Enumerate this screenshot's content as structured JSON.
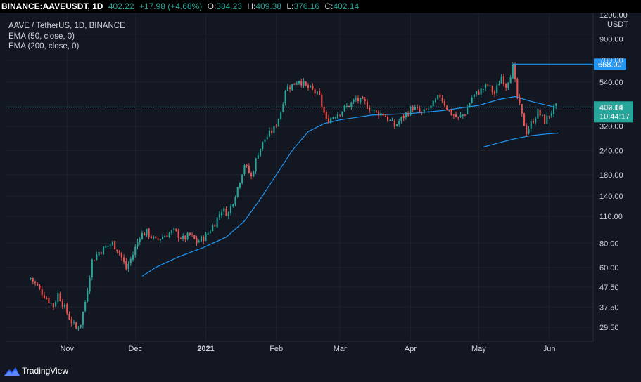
{
  "header": {
    "symbol": "BINANCE:AAVEUSDT, 1D",
    "price": "402.22",
    "change": "+17.98 (+4.68%)",
    "open_label": "O:",
    "open": "384.23",
    "high_label": "H:",
    "high": "409.38",
    "low_label": "L:",
    "low": "376.16",
    "close_label": "C:",
    "close": "402.14"
  },
  "legend": {
    "title": "AAVE / TetherUS, 1D, BINANCE",
    "ema50": "EMA (50, close, 0)",
    "ema200": "EMA (200, close, 0)"
  },
  "brand": {
    "name": "TradingView"
  },
  "colors": {
    "background": "#131722",
    "up": "#26a69a",
    "down": "#ef5350",
    "ema": "#2196f3",
    "grid": "#1e222d"
  },
  "chart_data": {
    "type": "candlestick",
    "y_scale": "log",
    "ylim": [
      25,
      1230
    ],
    "y_unit": "USDT",
    "y_ticks": [
      "1200.00",
      "900.00",
      "700.00",
      "540.00",
      "400.00",
      "320.00",
      "240.00",
      "180.00",
      "140.00",
      "110.00",
      "80.00",
      "60.00",
      "47.50",
      "37.50",
      "29.50"
    ],
    "x_ticks": [
      "Nov",
      "Dec",
      "2021",
      "Feb",
      "Mar",
      "Apr",
      "May",
      "Jun"
    ],
    "x_tick_dates": [
      "2020-11-01",
      "2020-12-01",
      "2021-01-01",
      "2021-02-01",
      "2021-03-01",
      "2021-04-01",
      "2021-05-01",
      "2021-06-01"
    ],
    "last_price": "402.14",
    "countdown": "10:44:17",
    "horizontal_line": {
      "value": 668.0,
      "label": "668.00"
    },
    "candle_keypoints": [
      [
        "2020-10-16",
        53
      ],
      [
        "2020-10-22",
        43
      ],
      [
        "2020-10-26",
        38
      ],
      [
        "2020-10-28",
        44
      ],
      [
        "2020-11-02",
        33
      ],
      [
        "2020-11-05",
        29
      ],
      [
        "2020-11-07",
        31
      ],
      [
        "2020-11-09",
        40
      ],
      [
        "2020-11-12",
        65
      ],
      [
        "2020-11-15",
        72
      ],
      [
        "2020-11-18",
        76
      ],
      [
        "2020-11-21",
        80
      ],
      [
        "2020-11-24",
        72
      ],
      [
        "2020-11-27",
        59
      ],
      [
        "2020-11-30",
        70
      ],
      [
        "2020-12-03",
        88
      ],
      [
        "2020-12-06",
        91
      ],
      [
        "2020-12-10",
        82
      ],
      [
        "2020-12-14",
        88
      ],
      [
        "2020-12-18",
        92
      ],
      [
        "2020-12-22",
        84
      ],
      [
        "2020-12-25",
        88
      ],
      [
        "2020-12-28",
        81
      ],
      [
        "2021-01-01",
        87
      ],
      [
        "2021-01-05",
        102
      ],
      [
        "2021-01-08",
        119
      ],
      [
        "2021-01-11",
        114
      ],
      [
        "2021-01-15",
        155
      ],
      [
        "2021-01-18",
        205
      ],
      [
        "2021-01-21",
        175
      ],
      [
        "2021-01-24",
        235
      ],
      [
        "2021-01-27",
        275
      ],
      [
        "2021-01-31",
        310
      ],
      [
        "2021-02-03",
        380
      ],
      [
        "2021-02-05",
        500
      ],
      [
        "2021-02-08",
        520
      ],
      [
        "2021-02-11",
        560
      ],
      [
        "2021-02-14",
        510
      ],
      [
        "2021-02-17",
        490
      ],
      [
        "2021-02-20",
        450
      ],
      [
        "2021-02-23",
        340
      ],
      [
        "2021-02-26",
        360
      ],
      [
        "2021-03-01",
        380
      ],
      [
        "2021-03-05",
        410
      ],
      [
        "2021-03-08",
        440
      ],
      [
        "2021-03-12",
        420
      ],
      [
        "2021-03-16",
        380
      ],
      [
        "2021-03-20",
        370
      ],
      [
        "2021-03-25",
        320
      ],
      [
        "2021-03-29",
        360
      ],
      [
        "2021-04-02",
        400
      ],
      [
        "2021-04-06",
        370
      ],
      [
        "2021-04-10",
        400
      ],
      [
        "2021-04-14",
        460
      ],
      [
        "2021-04-18",
        380
      ],
      [
        "2021-04-22",
        350
      ],
      [
        "2021-04-25",
        375
      ],
      [
        "2021-04-28",
        450
      ],
      [
        "2021-05-01",
        480
      ],
      [
        "2021-05-05",
        520
      ],
      [
        "2021-05-08",
        470
      ],
      [
        "2021-05-11",
        580
      ],
      [
        "2021-05-13",
        520
      ],
      [
        "2021-05-16",
        640
      ],
      [
        "2021-05-18",
        450
      ],
      [
        "2021-05-20",
        360
      ],
      [
        "2021-05-22",
        300
      ],
      [
        "2021-05-24",
        330
      ],
      [
        "2021-05-27",
        380
      ],
      [
        "2021-05-30",
        340
      ],
      [
        "2021-06-02",
        380
      ],
      [
        "2021-06-04",
        402
      ]
    ],
    "ema50_keypoints": [
      [
        "2020-12-04",
        54
      ],
      [
        "2020-12-10",
        60
      ],
      [
        "2020-12-20",
        68
      ],
      [
        "2020-12-31",
        76
      ],
      [
        "2021-01-10",
        86
      ],
      [
        "2021-01-18",
        104
      ],
      [
        "2021-01-25",
        135
      ],
      [
        "2021-02-01",
        180
      ],
      [
        "2021-02-08",
        240
      ],
      [
        "2021-02-15",
        300
      ],
      [
        "2021-02-22",
        330
      ],
      [
        "2021-03-01",
        345
      ],
      [
        "2021-03-15",
        365
      ],
      [
        "2021-04-01",
        372
      ],
      [
        "2021-04-15",
        385
      ],
      [
        "2021-05-01",
        410
      ],
      [
        "2021-05-10",
        440
      ],
      [
        "2021-05-17",
        455
      ],
      [
        "2021-05-24",
        430
      ],
      [
        "2021-06-04",
        400
      ]
    ],
    "ema200_keypoints": [
      [
        "2021-05-03",
        250
      ],
      [
        "2021-05-10",
        263
      ],
      [
        "2021-05-17",
        276
      ],
      [
        "2021-05-24",
        286
      ],
      [
        "2021-05-31",
        292
      ],
      [
        "2021-06-05",
        295
      ]
    ]
  }
}
